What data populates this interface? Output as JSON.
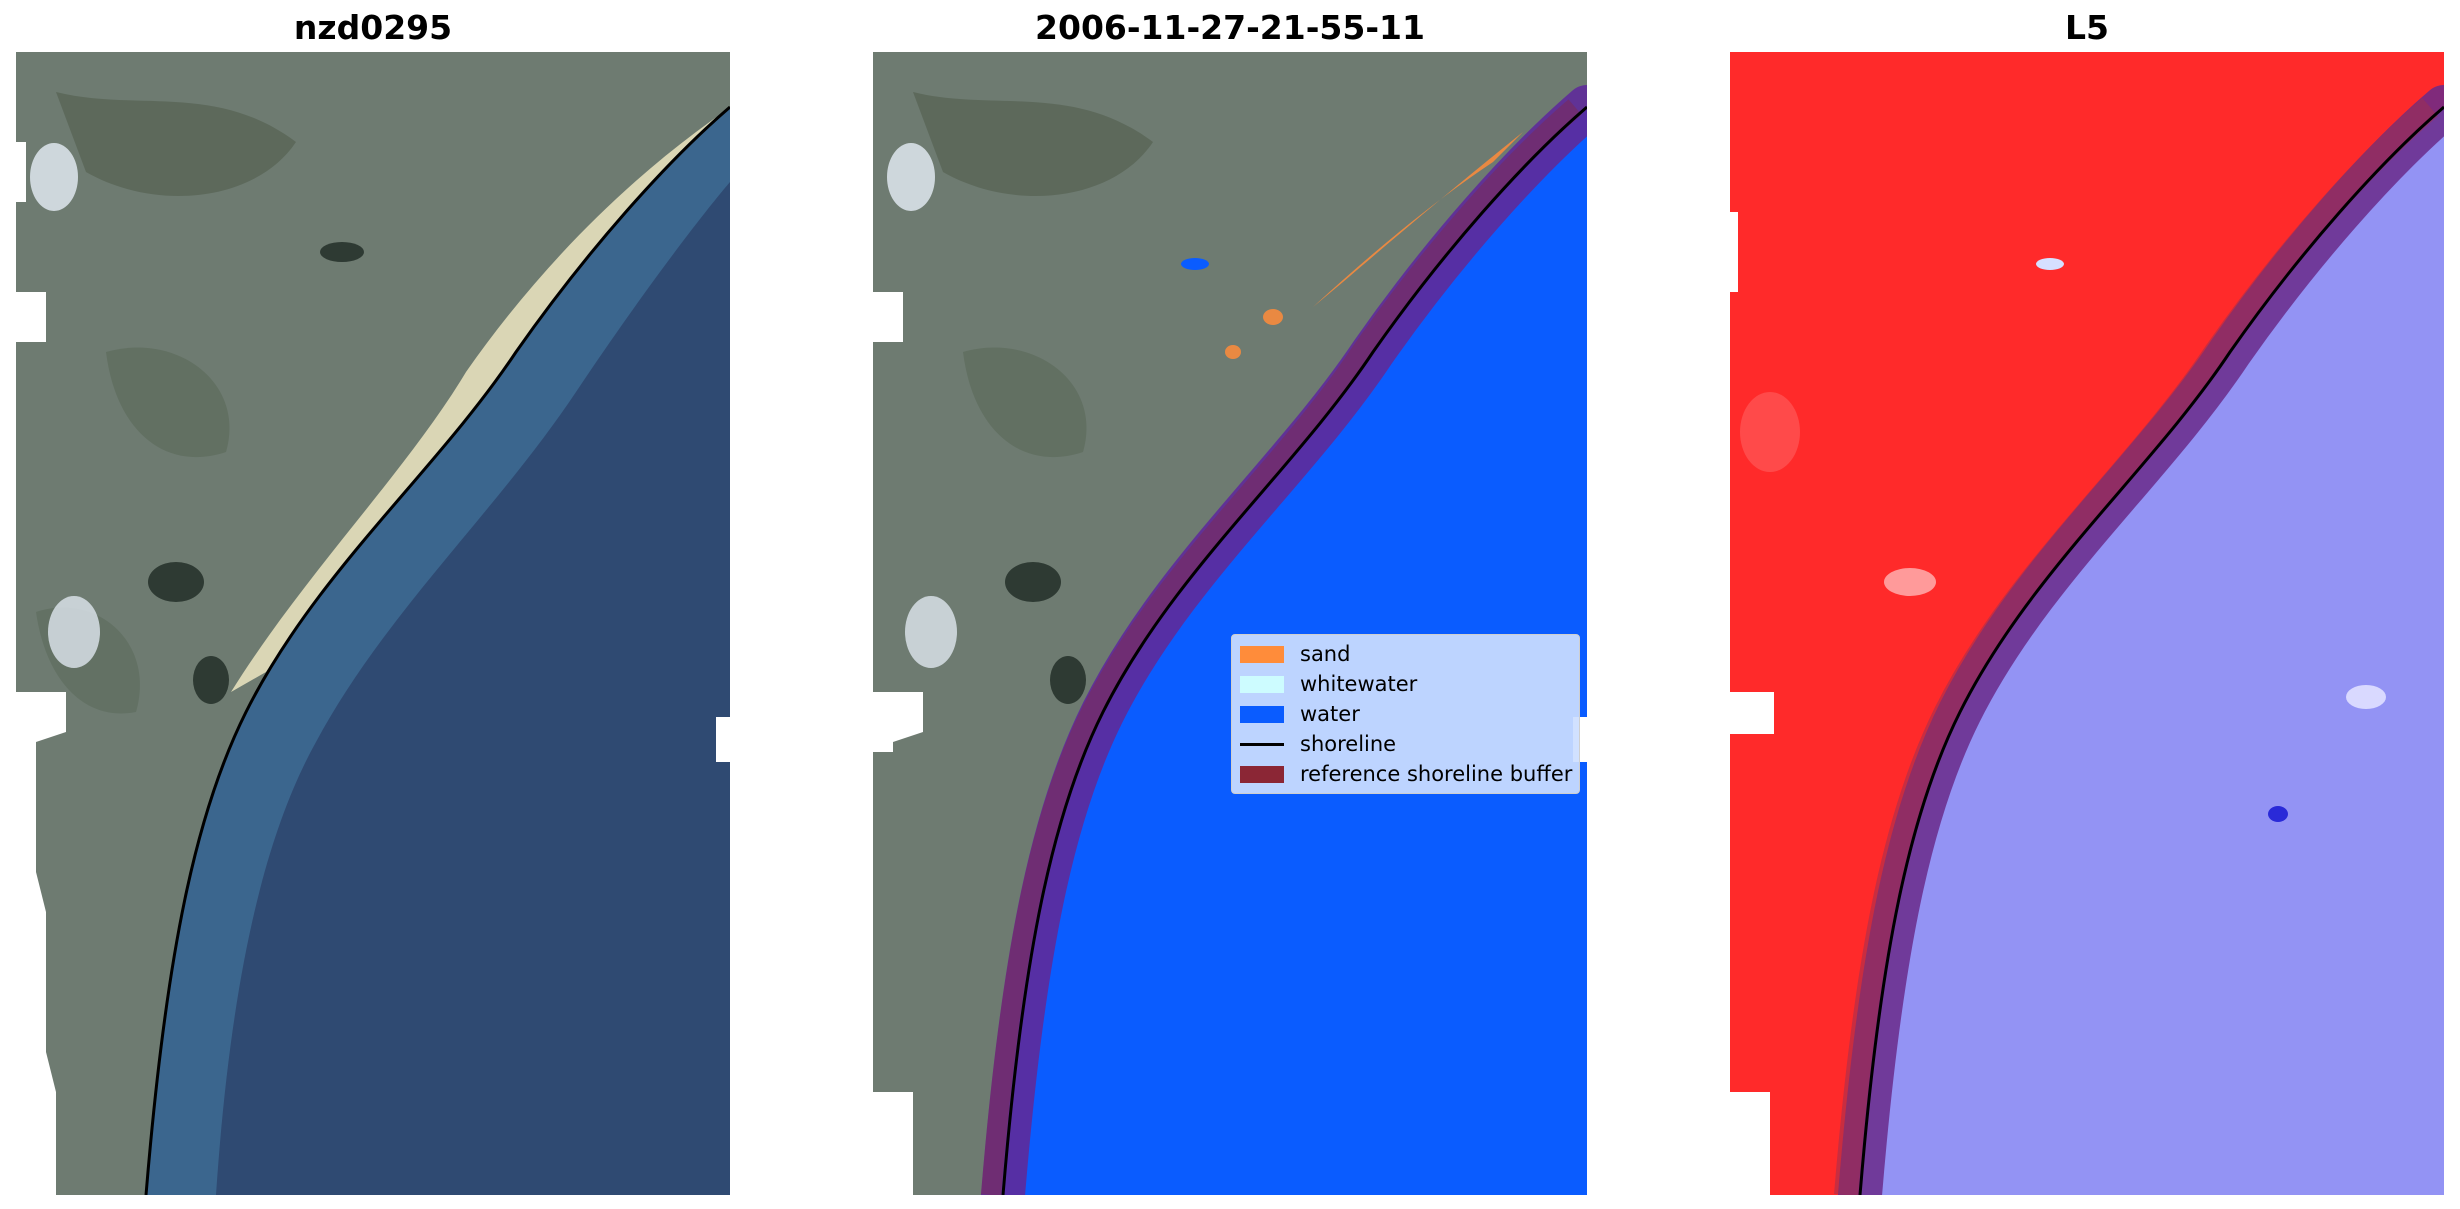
{
  "panels": [
    {
      "title": "nzd0295"
    },
    {
      "title": "2006-11-27-21-55-11"
    },
    {
      "title": "L5"
    }
  ],
  "legend": {
    "items": [
      {
        "label": "sand",
        "color": "#ff8c3a",
        "kind": "patch"
      },
      {
        "label": "whitewater",
        "color": "#cdfcff",
        "kind": "patch"
      },
      {
        "label": "water",
        "color": "#0a5cff",
        "kind": "patch"
      },
      {
        "label": "shoreline",
        "color": "#000000",
        "kind": "line"
      },
      {
        "label": "reference shoreline buffer",
        "color": "#8b2635",
        "kind": "patch"
      }
    ]
  },
  "colors": {
    "land": "#6d7a72",
    "ocean": "#2f4a73",
    "shallow_water": "#3f6d93",
    "beach_sand": "#e9e4c3",
    "classified_water": "#0a5cff",
    "buffer": "#5e2a9a",
    "index_land": "#ff2a2a",
    "index_water": "#8f8ff5"
  }
}
